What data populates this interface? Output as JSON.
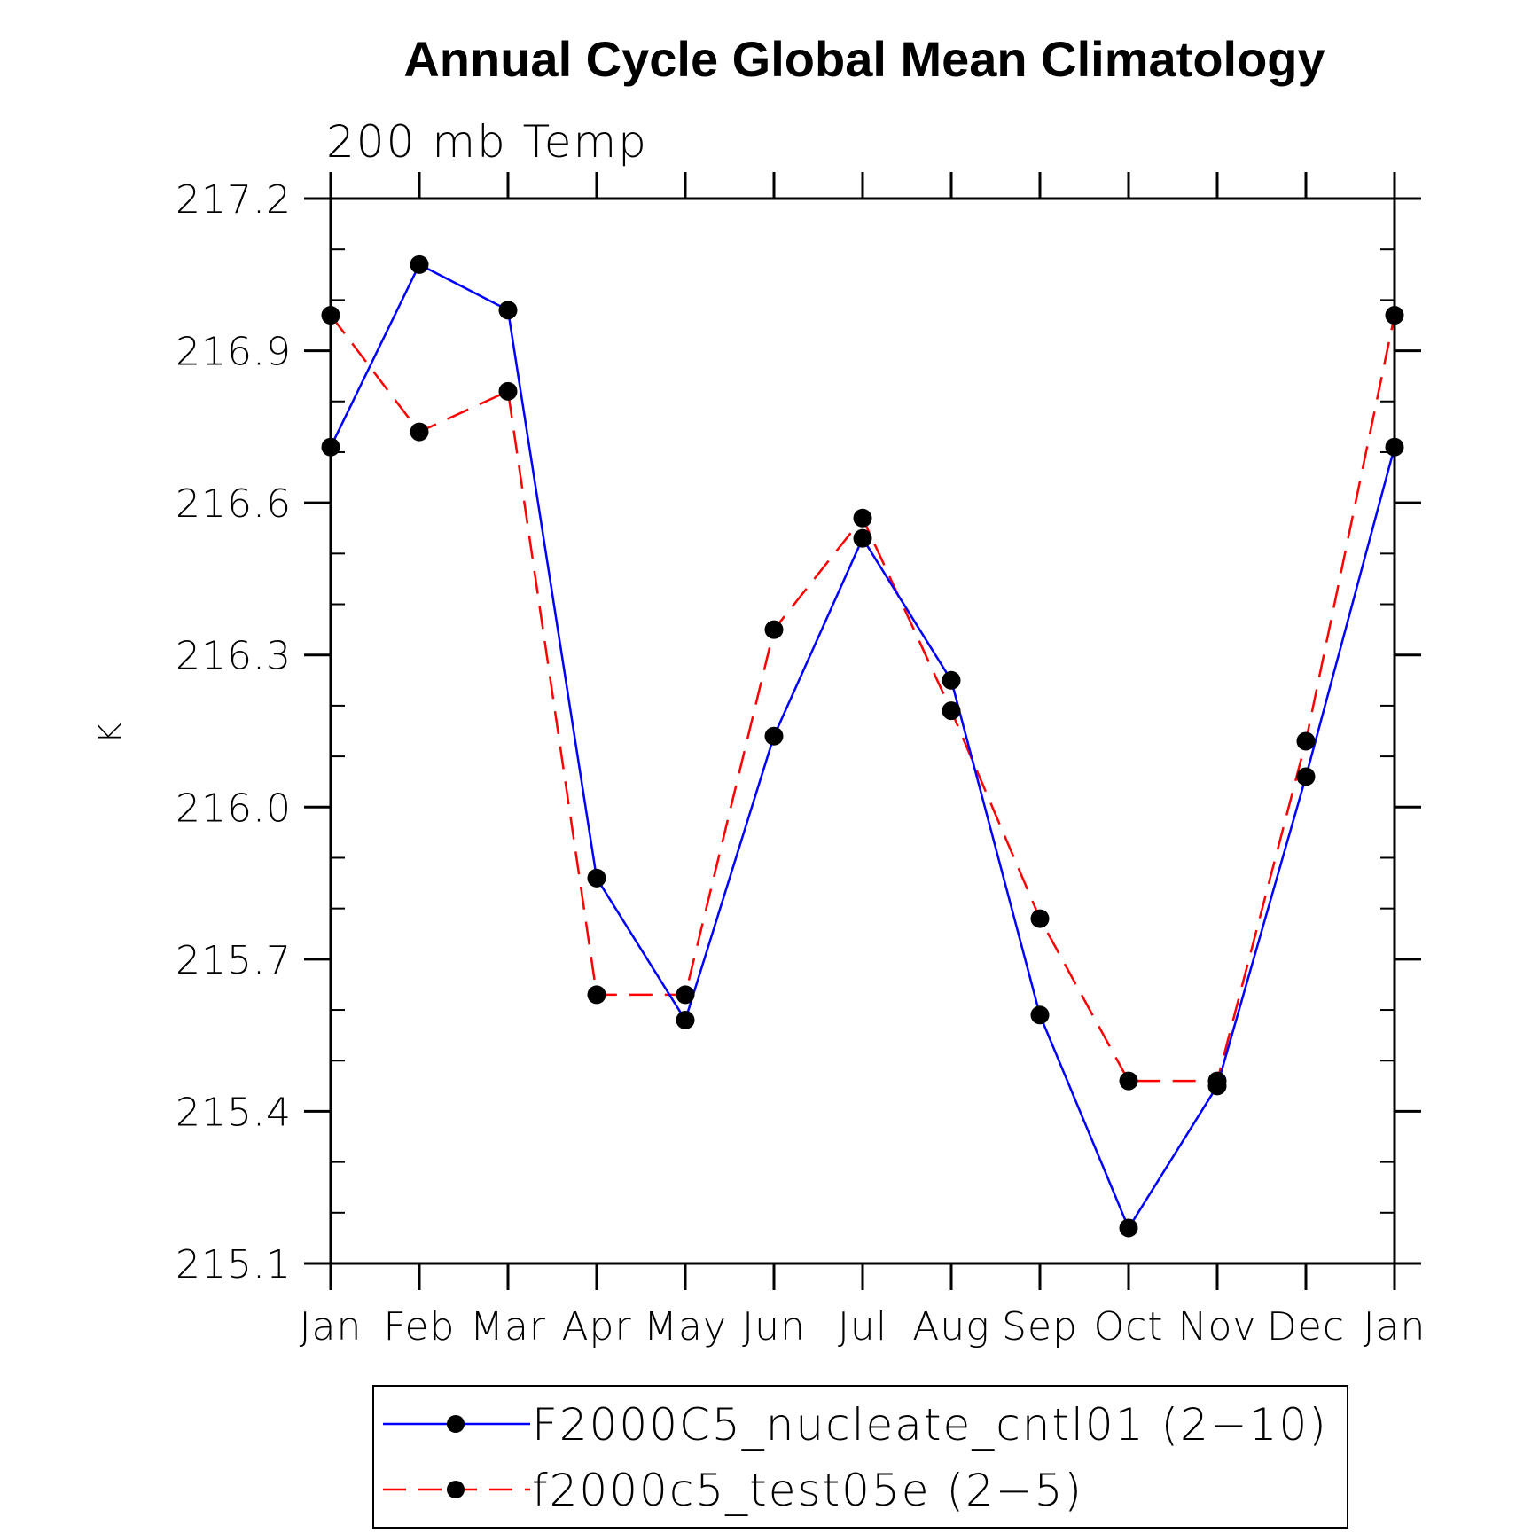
{
  "chart_data": {
    "type": "line",
    "title": "Annual Cycle Global Mean Climatology",
    "subtitle": "200 mb Temp",
    "xlabel": "",
    "ylabel": "K",
    "categories": [
      "Jan",
      "Feb",
      "Mar",
      "Apr",
      "May",
      "Jun",
      "Jul",
      "Aug",
      "Sep",
      "Oct",
      "Nov",
      "Dec",
      "Jan"
    ],
    "ylim": [
      215.1,
      217.2
    ],
    "yticks": [
      "215.1",
      "215.4",
      "215.7",
      "216.0",
      "216.3",
      "216.6",
      "216.9",
      "217.2"
    ],
    "series": [
      {
        "name": "F2000C5_nucleate_cntl01 (2−10)",
        "color": "#0000ff",
        "dash": "solid",
        "marker": "filled-circle",
        "values": [
          216.71,
          217.07,
          216.98,
          215.86,
          215.58,
          216.14,
          216.53,
          216.25,
          215.59,
          215.17,
          215.45,
          216.06,
          216.71
        ]
      },
      {
        "name": "f2000c5_test05e (2−5)",
        "color": "#ff0000",
        "dash": "dashed",
        "marker": "filled-circle",
        "values": [
          216.97,
          216.74,
          216.82,
          215.63,
          215.63,
          216.35,
          216.57,
          216.19,
          215.78,
          215.46,
          215.46,
          216.13,
          216.97
        ]
      }
    ],
    "legend_position": "bottom"
  }
}
